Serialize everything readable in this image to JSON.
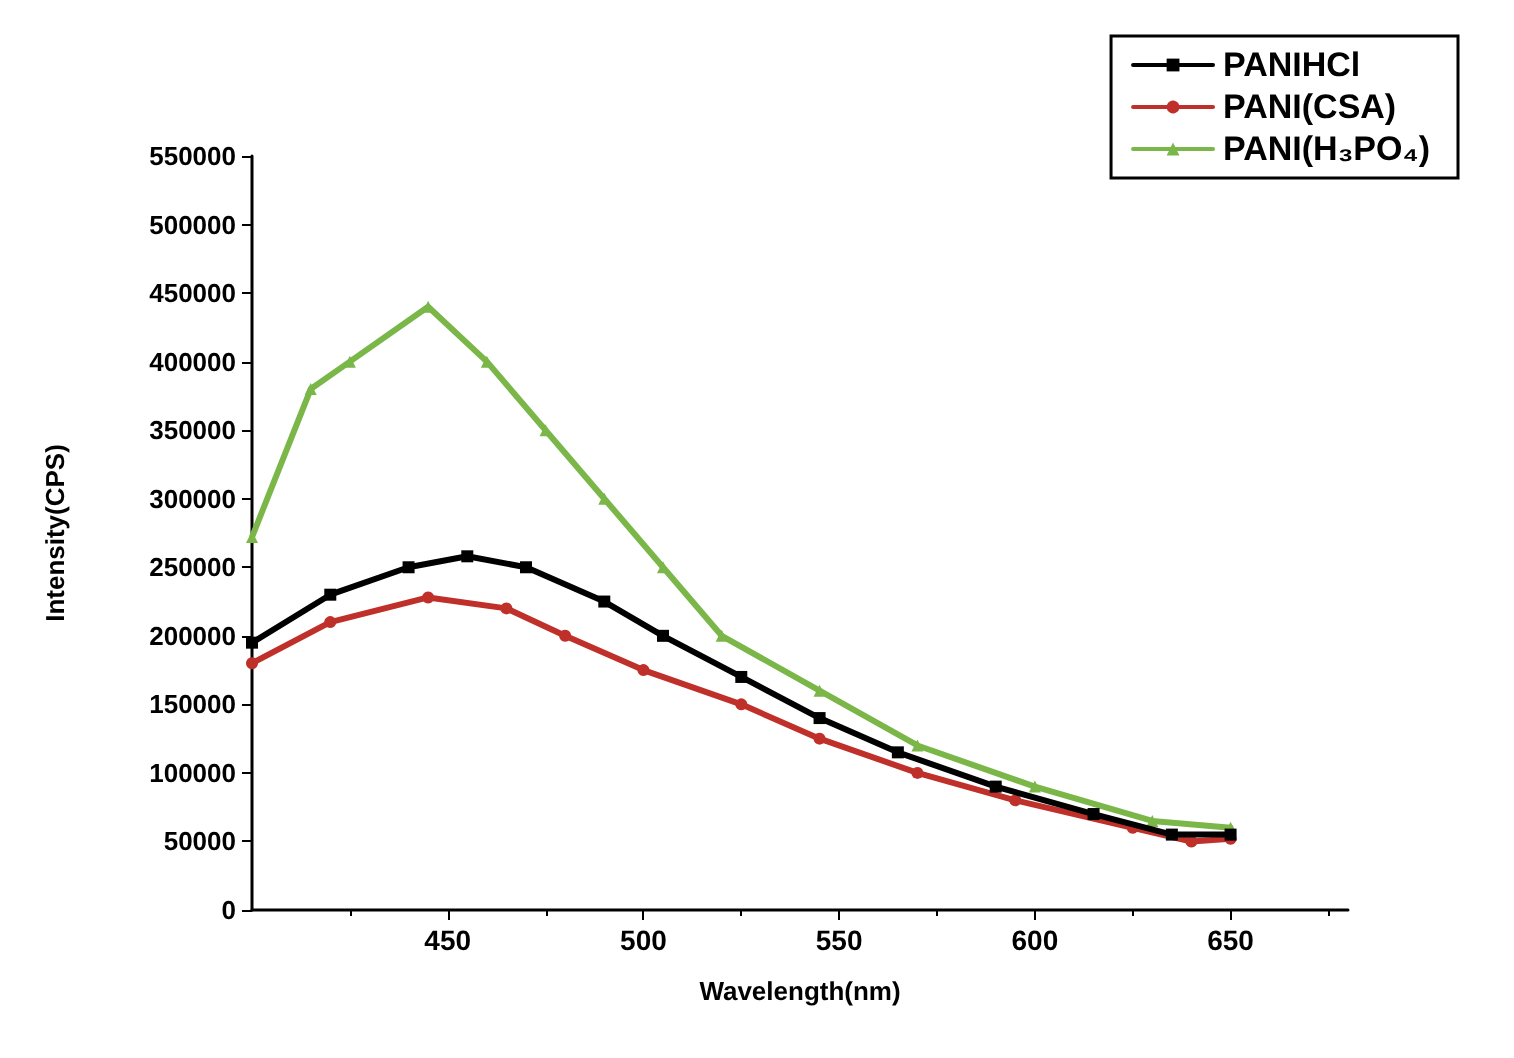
{
  "chart_data": {
    "type": "line",
    "xlabel": "Wavelength(nm)",
    "ylabel": "Intensity(CPS)",
    "xlim": [
      400,
      680
    ],
    "xticks": [
      450,
      500,
      550,
      600,
      650
    ],
    "ylim": [
      0,
      550000
    ],
    "yticks": [
      0,
      50000,
      100000,
      150000,
      200000,
      250000,
      300000,
      350000,
      400000,
      450000,
      500000,
      550000
    ],
    "grid": false,
    "legend": "top right",
    "line_style": "solid",
    "series": [
      {
        "name": "PANIHCl",
        "color": "#000000",
        "marker": "square",
        "x": [
          400,
          420,
          440,
          455,
          470,
          490,
          505,
          525,
          545,
          565,
          590,
          615,
          635,
          650
        ],
        "values": [
          195000,
          230000,
          250000,
          258000,
          250000,
          225000,
          200000,
          170000,
          140000,
          115000,
          90000,
          70000,
          55000,
          55000
        ]
      },
      {
        "name": "PANI(CSA)",
        "color": "#c0302a",
        "marker": "circle",
        "x": [
          400,
          420,
          445,
          465,
          480,
          500,
          525,
          545,
          570,
          595,
          625,
          640,
          650
        ],
        "values": [
          180000,
          210000,
          228000,
          220000,
          200000,
          175000,
          150000,
          125000,
          100000,
          80000,
          60000,
          50000,
          52000
        ]
      },
      {
        "name": "PANI(H₃PO₄)",
        "color": "#7ab648",
        "marker": "triangle",
        "x": [
          400,
          415,
          425,
          445,
          460,
          475,
          490,
          505,
          520,
          545,
          570,
          600,
          630,
          650
        ],
        "values": [
          272000,
          380000,
          400000,
          440000,
          400000,
          350000,
          300000,
          250000,
          200000,
          160000,
          120000,
          90000,
          65000,
          60000
        ]
      }
    ]
  }
}
